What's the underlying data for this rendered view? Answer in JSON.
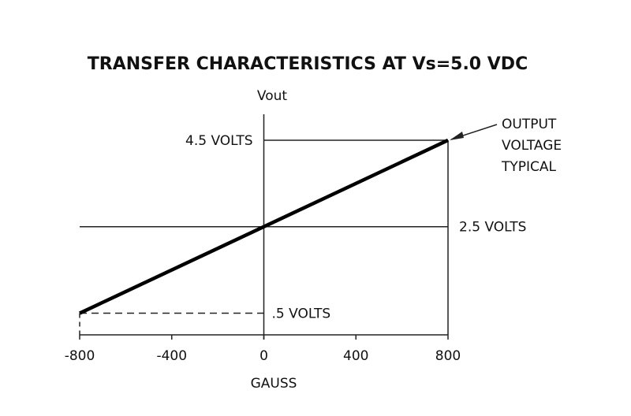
{
  "chart_data": {
    "type": "line",
    "title": "TRANSFER CHARACTERISTICS AT Vs=5.0 VDC",
    "y_label": "Vout",
    "x_label": "GAUSS",
    "x": [
      -800,
      800
    ],
    "series": [
      {
        "color": "#000000",
        "values": [
          0.5,
          4.5
        ]
      }
    ],
    "callout": [
      "OUTPUT",
      "VOLTAGE",
      "TYPICAL"
    ],
    "xlim": [
      -800,
      800
    ],
    "ylim": [
      0,
      5.1
    ],
    "xticks": [
      -800,
      -400,
      0,
      400,
      800
    ],
    "yticks": [
      {
        "value": 4.5,
        "label": "4.5 VOLTS"
      },
      {
        "value": 2.5,
        "label": "2.5 VOLTS"
      },
      {
        "value": 0.5,
        "label": ".5 VOLTS"
      }
    ]
  }
}
